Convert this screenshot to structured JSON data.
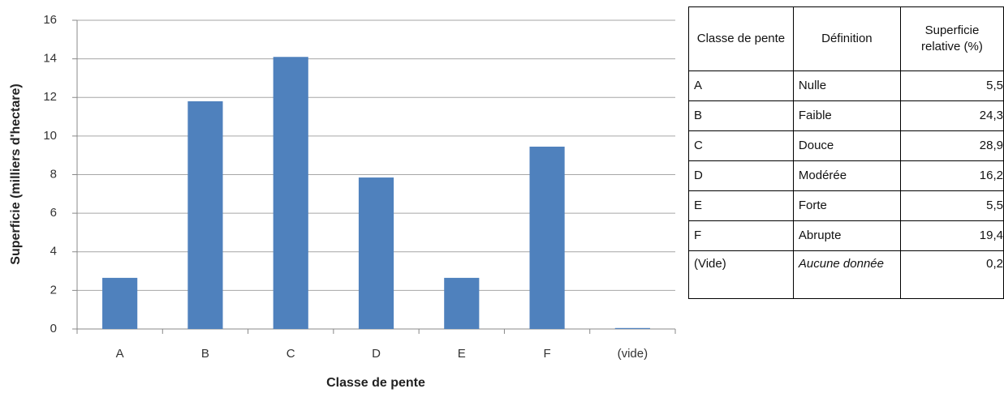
{
  "chart_data": {
    "type": "bar",
    "x_label": "Classe de pente",
    "y_label": "Superficie (milliers d'hectare)",
    "categories": [
      "A",
      "B",
      "C",
      "D",
      "E",
      "F",
      "(vide)"
    ],
    "values": [
      2.65,
      11.8,
      14.1,
      7.85,
      2.65,
      9.45,
      0.05
    ],
    "color": "#4f81bd",
    "ylim": [
      0,
      16
    ],
    "yticks": [
      0,
      2,
      4,
      6,
      8,
      10,
      12,
      14,
      16
    ],
    "grid": true
  },
  "table": {
    "header": [
      "Classe de pente",
      "Définition",
      "Superficie relative (%)"
    ],
    "rows": [
      [
        "A",
        "Nulle",
        "5,5"
      ],
      [
        "B",
        "Faible",
        "24,3"
      ],
      [
        "C",
        "Douce",
        "28,9"
      ],
      [
        "D",
        "Modérée",
        "16,2"
      ],
      [
        "E",
        "Forte",
        "5,5"
      ],
      [
        "F",
        "Abrupte",
        "19,4"
      ],
      [
        "(Vide)",
        "Aucune donnée",
        "0,2"
      ]
    ]
  }
}
